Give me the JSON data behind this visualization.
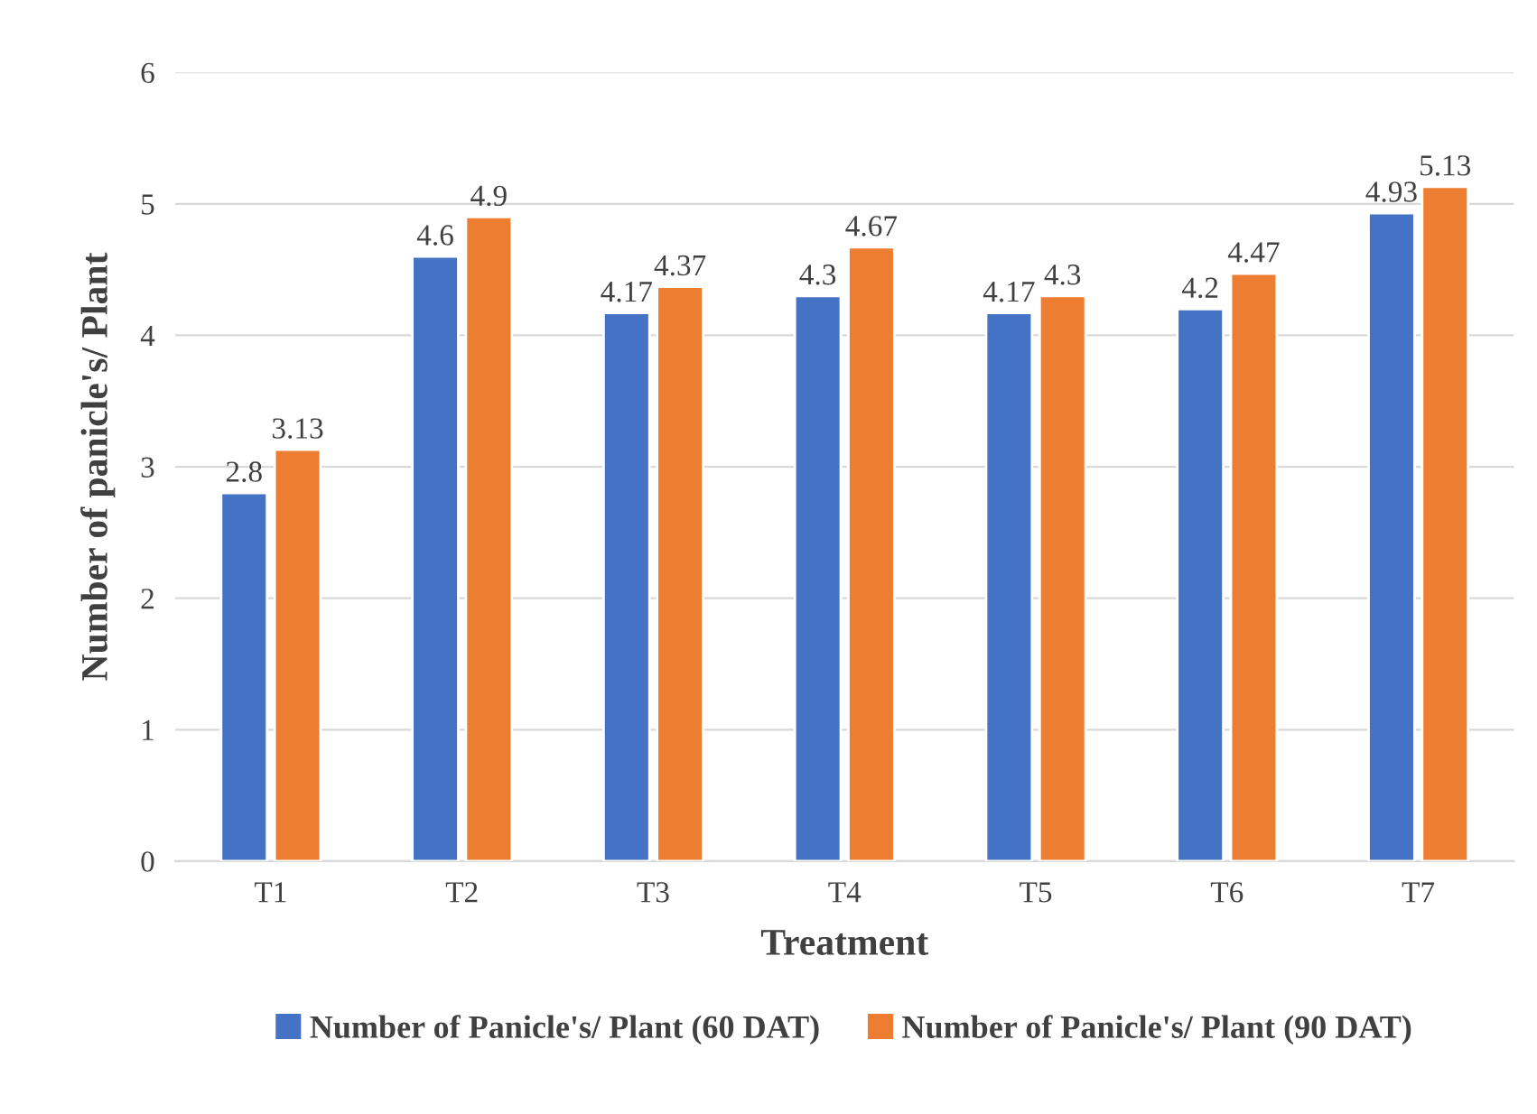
{
  "chart_data": {
    "type": "bar",
    "xlabel": "Treatment",
    "ylabel": "Number of panicle's/ Plant",
    "categories": [
      "T1",
      "T2",
      "T3",
      "T4",
      "T5",
      "T6",
      "T7"
    ],
    "series": [
      {
        "name": "Number of Panicle's/ Plant (60 DAT)",
        "color": "#4472c4",
        "values": [
          2.8,
          4.6,
          4.17,
          4.3,
          4.17,
          4.2,
          4.93
        ]
      },
      {
        "name": "Number of Panicle's/ Plant (90 DAT)",
        "color": "#ed7d31",
        "values": [
          3.13,
          4.9,
          4.37,
          4.67,
          4.3,
          4.47,
          5.13
        ]
      }
    ],
    "ylim": [
      0,
      6
    ],
    "yticks": [
      0,
      1,
      2,
      3,
      4,
      5,
      6
    ],
    "grid": "y",
    "legend": "bottom",
    "data_labels": true
  }
}
